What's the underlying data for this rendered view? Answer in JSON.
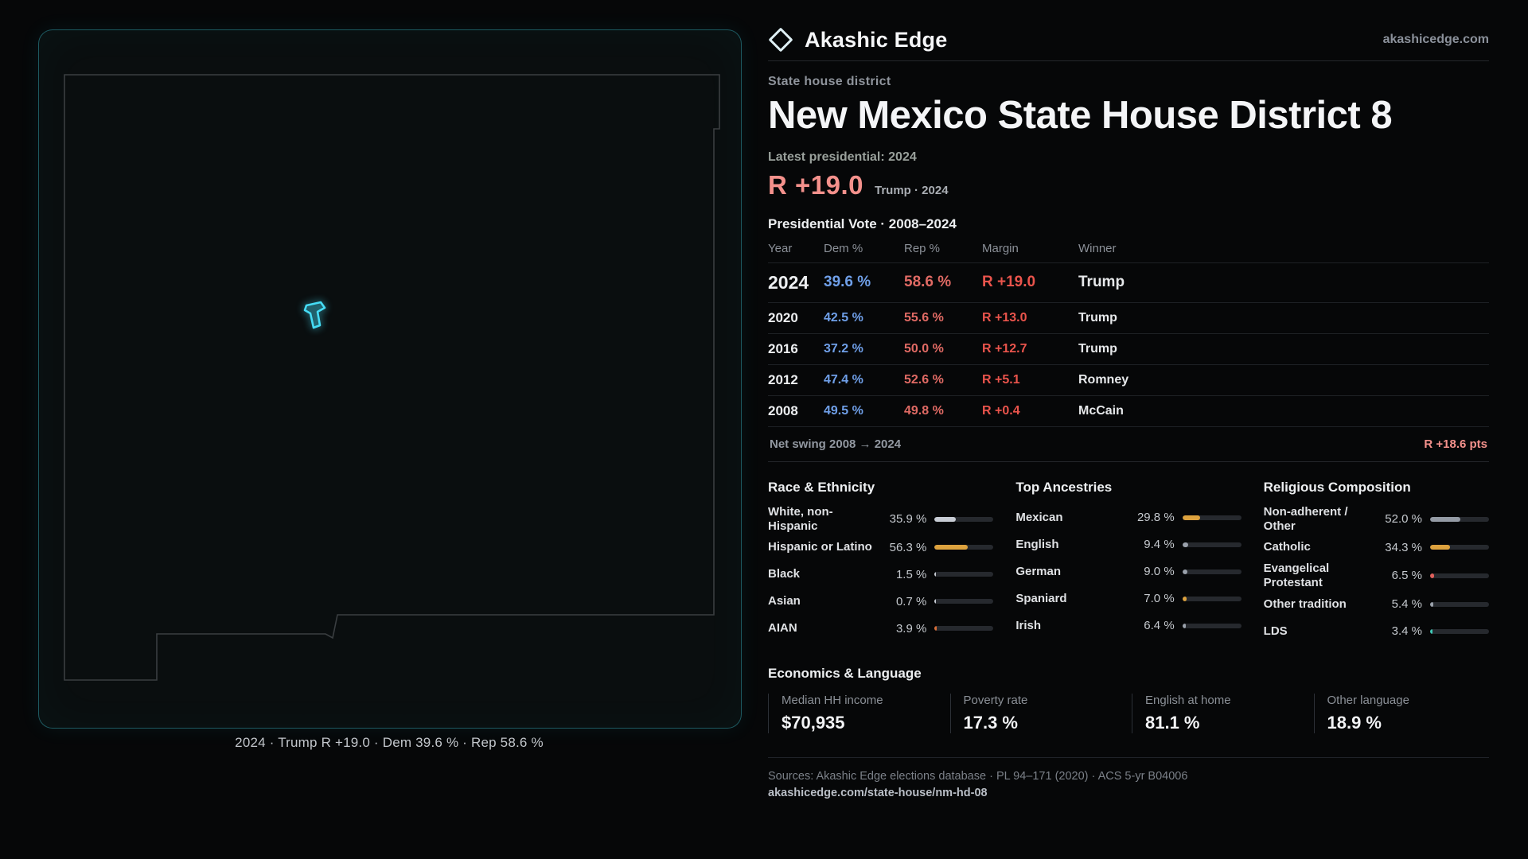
{
  "brand": {
    "name": "Akashic Edge",
    "domain": "akashicedge.com"
  },
  "page": {
    "kicker": "State house district",
    "title": "New Mexico State House District 8",
    "latest_label": "Latest presidential: 2024",
    "headline_margin": "R +19.0",
    "headline_context": "Trump · 2024"
  },
  "map": {
    "caption": "2024 · Trump R +19.0 · Dem 39.6 % · Rep 58.6 %",
    "state": "New Mexico"
  },
  "colors": {
    "dem": "#6f9fe8",
    "rep": "#e06a64",
    "marginc": "#ea544c",
    "accent": "#f4918c",
    "district": "#45dcf5"
  },
  "chart_data": [
    {
      "type": "table",
      "title": "Presidential Vote · 2008–2024",
      "columns": [
        "Year",
        "Dem %",
        "Rep %",
        "Margin",
        "Winner"
      ],
      "rows": [
        {
          "year": "2024",
          "dem": "39.6 %",
          "rep": "58.6 %",
          "margin": "R +19.0",
          "winner": "Trump",
          "highlight": true
        },
        {
          "year": "2020",
          "dem": "42.5 %",
          "rep": "55.6 %",
          "margin": "R +13.0",
          "winner": "Trump",
          "highlight": false
        },
        {
          "year": "2016",
          "dem": "37.2 %",
          "rep": "50.0 %",
          "margin": "R +12.7",
          "winner": "Trump",
          "highlight": false
        },
        {
          "year": "2012",
          "dem": "47.4 %",
          "rep": "52.6 %",
          "margin": "R +5.1",
          "winner": "Romney",
          "highlight": false
        },
        {
          "year": "2008",
          "dem": "49.5 %",
          "rep": "49.8 %",
          "margin": "R +0.4",
          "winner": "McCain",
          "highlight": false
        }
      ],
      "net_swing_label": "Net swing 2008 → 2024",
      "net_swing_value": "R +18.6 pts"
    },
    {
      "type": "bar",
      "title": "Race & Ethnicity",
      "unit": "%",
      "xlim": [
        0,
        100
      ],
      "categories": [
        "White, non-Hispanic",
        "Hispanic or Latino",
        "Black",
        "Asian",
        "AIAN"
      ],
      "values": [
        35.9,
        56.3,
        1.5,
        0.7,
        3.9
      ],
      "value_labels": [
        "35.9 %",
        "56.3 %",
        "1.5 %",
        "0.7 %",
        "3.9 %"
      ],
      "colors": [
        "#c7ccd4",
        "#dda23e",
        "#c7ccd4",
        "#c7ccd4",
        "#d96e38"
      ]
    },
    {
      "type": "bar",
      "title": "Top Ancestries",
      "unit": "%",
      "xlim": [
        0,
        100
      ],
      "categories": [
        "Mexican",
        "English",
        "German",
        "Spaniard",
        "Irish"
      ],
      "values": [
        29.8,
        9.4,
        9.0,
        7.0,
        6.4
      ],
      "value_labels": [
        "29.8 %",
        "9.4 %",
        "9.0 %",
        "7.0 %",
        "6.4 %"
      ],
      "colors": [
        "#dda23e",
        "#9aa1ab",
        "#9aa1ab",
        "#dda23e",
        "#9aa1ab"
      ]
    },
    {
      "type": "bar",
      "title": "Religious Composition",
      "unit": "%",
      "xlim": [
        0,
        100
      ],
      "categories": [
        "Non-adherent / Other",
        "Catholic",
        "Evangelical Protestant",
        "Other tradition",
        "LDS"
      ],
      "values": [
        52.0,
        34.3,
        6.5,
        5.4,
        3.4
      ],
      "value_labels": [
        "52.0 %",
        "34.3 %",
        "6.5 %",
        "5.4 %",
        "3.4 %"
      ],
      "colors": [
        "#949ba5",
        "#dda23e",
        "#e0605c",
        "#9aa1ab",
        "#3fc8b6"
      ]
    }
  ],
  "economics": {
    "title": "Economics & Language",
    "stats": [
      {
        "label": "Median HH income",
        "value": "$70,935"
      },
      {
        "label": "Poverty rate",
        "value": "17.3 %"
      },
      {
        "label": "English at home",
        "value": "81.1 %"
      },
      {
        "label": "Other language",
        "value": "18.9 %"
      }
    ]
  },
  "footer": {
    "sources": "Sources: Akashic Edge elections database · PL 94–171 (2020) · ACS 5-yr B04006",
    "permalink": "akashicedge.com/state-house/nm-hd-08"
  }
}
